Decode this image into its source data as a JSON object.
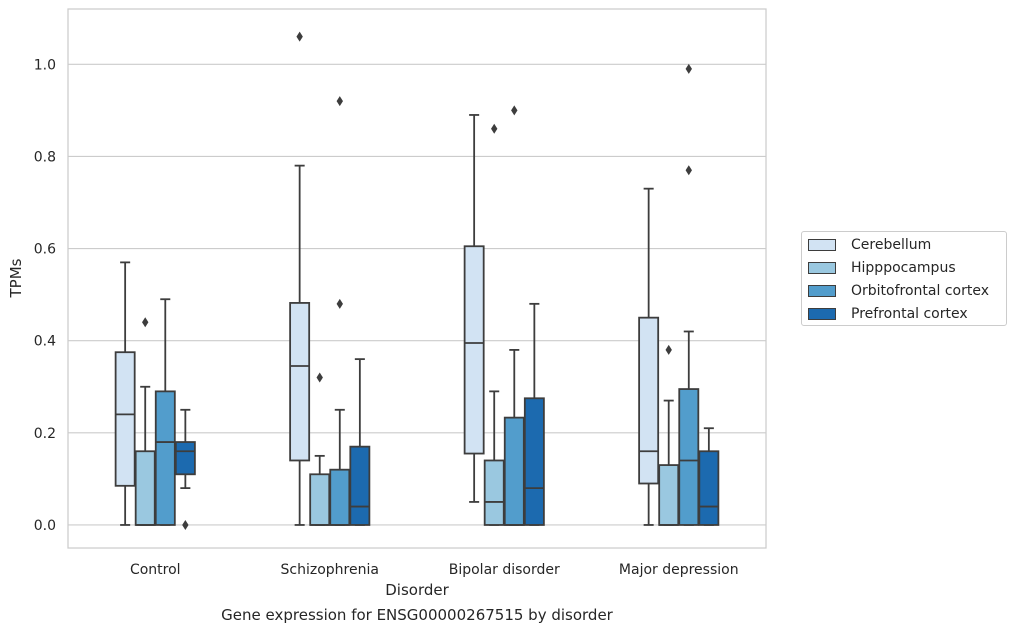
{
  "chart_data": {
    "type": "box",
    "title": "",
    "caption": "Gene expression for ENSG00000267515 by disorder",
    "xlabel": "Disorder",
    "ylabel": "TPMs",
    "categories": [
      "Control",
      "Schizophrenia",
      "Bipolar disorder",
      "Major depression"
    ],
    "ylim": [
      -0.05,
      1.12
    ],
    "yticks": [
      0.0,
      0.2,
      0.4,
      0.6,
      0.8,
      1.0
    ],
    "ytick_labels": [
      "0.0",
      "0.2",
      "0.4",
      "0.6",
      "0.8",
      "1.0"
    ],
    "grid": "horizontal",
    "legend_position": "right",
    "series": [
      {
        "name": "Cerebellum",
        "color": "#d2e3f3",
        "boxes": [
          {
            "min": 0.0,
            "q1": 0.085,
            "median": 0.24,
            "q3": 0.375,
            "max": 0.57,
            "outliers": []
          },
          {
            "min": 0.0,
            "q1": 0.14,
            "median": 0.345,
            "q3": 0.482,
            "max": 0.78,
            "outliers": [
              1.06
            ]
          },
          {
            "min": 0.05,
            "q1": 0.155,
            "median": 0.395,
            "q3": 0.605,
            "max": 0.89,
            "outliers": []
          },
          {
            "min": 0.0,
            "q1": 0.09,
            "median": 0.16,
            "q3": 0.45,
            "max": 0.73,
            "outliers": []
          }
        ]
      },
      {
        "name": "Hipppocampus",
        "color": "#9ac8e0",
        "boxes": [
          {
            "min": 0.0,
            "q1": 0.0,
            "median": 0.0,
            "q3": 0.16,
            "max": 0.3,
            "outliers": [
              0.44
            ]
          },
          {
            "min": 0.0,
            "q1": 0.0,
            "median": 0.0,
            "q3": 0.11,
            "max": 0.15,
            "outliers": [
              0.32
            ]
          },
          {
            "min": 0.0,
            "q1": 0.0,
            "median": 0.05,
            "q3": 0.14,
            "max": 0.29,
            "outliers": [
              0.86
            ]
          },
          {
            "min": 0.0,
            "q1": 0.0,
            "median": 0.0,
            "q3": 0.13,
            "max": 0.27,
            "outliers": [
              0.38
            ]
          }
        ]
      },
      {
        "name": "Orbitofrontal cortex",
        "color": "#529dcc",
        "boxes": [
          {
            "min": 0.0,
            "q1": 0.0,
            "median": 0.18,
            "q3": 0.29,
            "max": 0.49,
            "outliers": []
          },
          {
            "min": 0.0,
            "q1": 0.0,
            "median": 0.0,
            "q3": 0.12,
            "max": 0.25,
            "outliers": [
              0.48,
              0.92
            ]
          },
          {
            "min": 0.0,
            "q1": 0.0,
            "median": 0.0,
            "q3": 0.233,
            "max": 0.38,
            "outliers": [
              0.9
            ]
          },
          {
            "min": 0.0,
            "q1": 0.0,
            "median": 0.14,
            "q3": 0.295,
            "max": 0.42,
            "outliers": [
              0.77,
              0.99
            ]
          }
        ]
      },
      {
        "name": "Prefrontal cortex",
        "color": "#1c6aaf",
        "boxes": [
          {
            "min": 0.08,
            "q1": 0.11,
            "median": 0.16,
            "q3": 0.18,
            "max": 0.25,
            "outliers": [
              0.0
            ]
          },
          {
            "min": 0.0,
            "q1": 0.0,
            "median": 0.04,
            "q3": 0.17,
            "max": 0.36,
            "outliers": []
          },
          {
            "min": 0.0,
            "q1": 0.0,
            "median": 0.08,
            "q3": 0.275,
            "max": 0.48,
            "outliers": []
          },
          {
            "min": 0.0,
            "q1": 0.0,
            "median": 0.04,
            "q3": 0.16,
            "max": 0.21,
            "outliers": []
          }
        ]
      }
    ]
  }
}
